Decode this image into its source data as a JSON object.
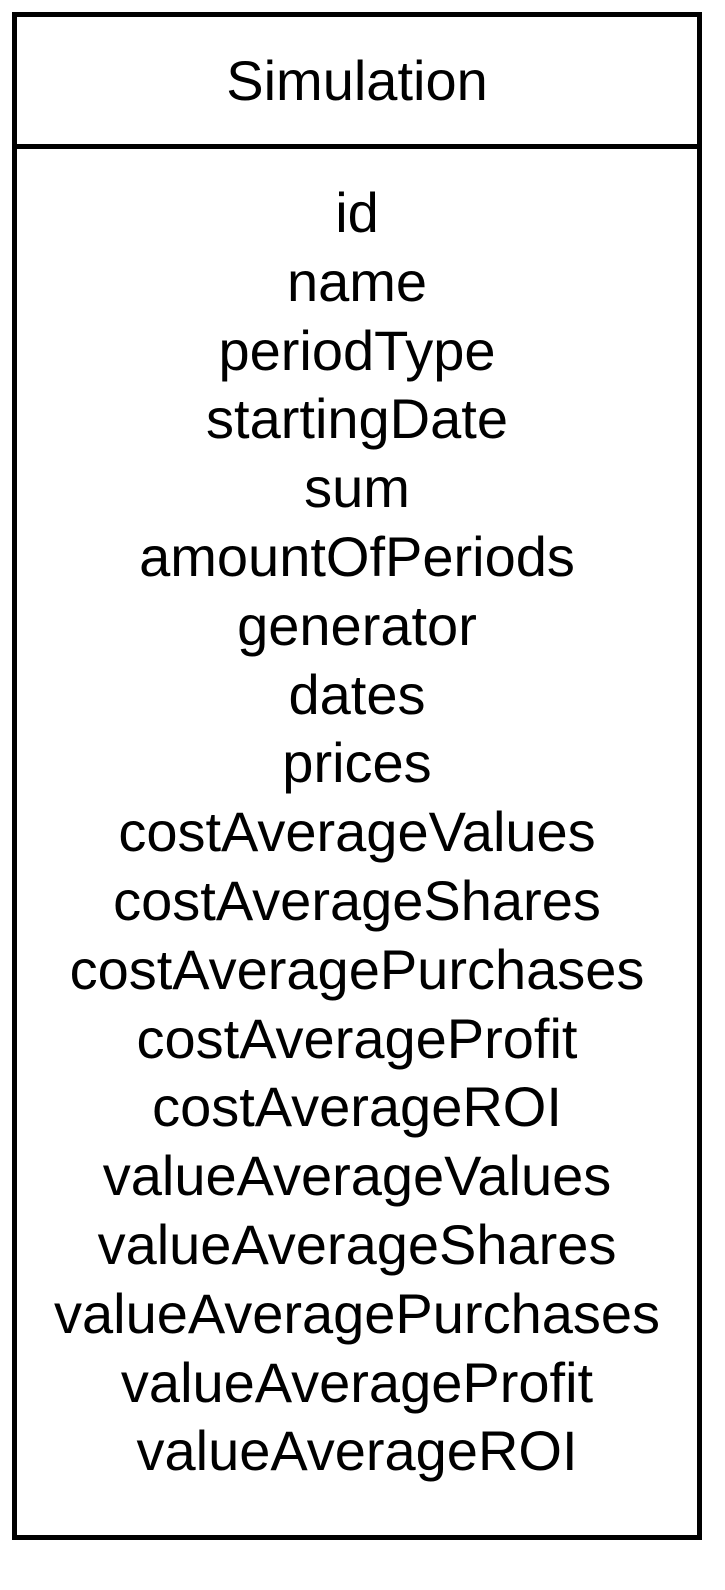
{
  "class_box": {
    "name": "Simulation",
    "attributes": [
      "id",
      "name",
      "periodType",
      "startingDate",
      "sum",
      "amountOfPeriods",
      "generator",
      "dates",
      "prices",
      "costAverageValues",
      "costAverageShares",
      "costAveragePurchases",
      "costAverageProfit",
      "costAverageROI",
      "valueAverageValues",
      "valueAverageShares",
      "valueAveragePurchases",
      "valueAverageProfit",
      "valueAverageROI"
    ]
  }
}
